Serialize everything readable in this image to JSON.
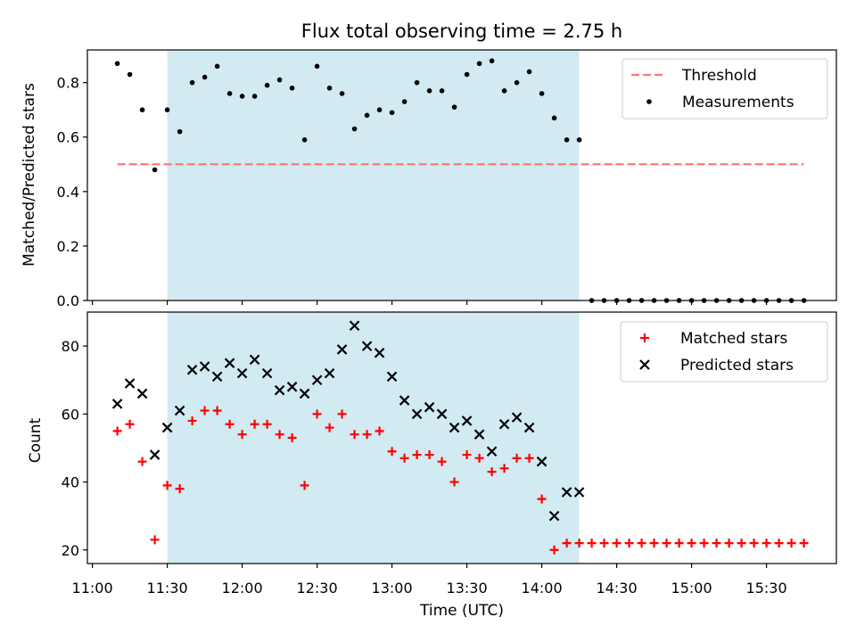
{
  "title": "Flux total observing time = 2.75 h",
  "xlabel": "Time (UTC)",
  "x_ticks": [
    "11:00",
    "11:30",
    "12:00",
    "12:30",
    "13:00",
    "13:30",
    "14:00",
    "14:30",
    "15:00",
    "15:30"
  ],
  "chart_data": [
    {
      "type": "scatter",
      "ylabel": "Matched/Predicted stars",
      "ylim": [
        0,
        0.92
      ],
      "y_ticks": [
        0.0,
        0.2,
        0.4,
        0.6,
        0.8
      ],
      "xlim": [
        "10:58",
        "15:58"
      ],
      "shaded_span": [
        "11:30",
        "14:15"
      ],
      "shade_color": "#add8e6",
      "legend_position": "upper right",
      "threshold": {
        "name": "Threshold",
        "y": 0.5,
        "x_range": [
          "11:10",
          "15:45"
        ],
        "color": "#ff7777",
        "style": "dashed"
      },
      "series": [
        {
          "name": "Measurements",
          "marker": "dot",
          "color": "#000000",
          "points": [
            [
              "11:10",
              0.87
            ],
            [
              "11:15",
              0.83
            ],
            [
              "11:20",
              0.7
            ],
            [
              "11:25",
              0.48
            ],
            [
              "11:30",
              0.7
            ],
            [
              "11:35",
              0.62
            ],
            [
              "11:40",
              0.8
            ],
            [
              "11:45",
              0.82
            ],
            [
              "11:50",
              0.86
            ],
            [
              "11:55",
              0.76
            ],
            [
              "12:00",
              0.75
            ],
            [
              "12:05",
              0.75
            ],
            [
              "12:10",
              0.79
            ],
            [
              "12:15",
              0.81
            ],
            [
              "12:20",
              0.78
            ],
            [
              "12:25",
              0.59
            ],
            [
              "12:30",
              0.86
            ],
            [
              "12:35",
              0.78
            ],
            [
              "12:40",
              0.76
            ],
            [
              "12:45",
              0.63
            ],
            [
              "12:50",
              0.68
            ],
            [
              "12:55",
              0.7
            ],
            [
              "13:00",
              0.69
            ],
            [
              "13:05",
              0.73
            ],
            [
              "13:10",
              0.8
            ],
            [
              "13:15",
              0.77
            ],
            [
              "13:20",
              0.77
            ],
            [
              "13:25",
              0.71
            ],
            [
              "13:30",
              0.83
            ],
            [
              "13:35",
              0.87
            ],
            [
              "13:40",
              0.88
            ],
            [
              "13:45",
              0.77
            ],
            [
              "13:50",
              0.8
            ],
            [
              "13:55",
              0.84
            ],
            [
              "14:00",
              0.76
            ],
            [
              "14:05",
              0.67
            ],
            [
              "14:10",
              0.59
            ],
            [
              "14:15",
              0.59
            ],
            [
              "14:20",
              0.0
            ],
            [
              "14:25",
              0.0
            ],
            [
              "14:30",
              0.0
            ],
            [
              "14:35",
              0.0
            ],
            [
              "14:40",
              0.0
            ],
            [
              "14:45",
              0.0
            ],
            [
              "14:50",
              0.0
            ],
            [
              "14:55",
              0.0
            ],
            [
              "15:00",
              0.0
            ],
            [
              "15:05",
              0.0
            ],
            [
              "15:10",
              0.0
            ],
            [
              "15:15",
              0.0
            ],
            [
              "15:20",
              0.0
            ],
            [
              "15:25",
              0.0
            ],
            [
              "15:30",
              0.0
            ],
            [
              "15:35",
              0.0
            ],
            [
              "15:40",
              0.0
            ],
            [
              "15:45",
              0.0
            ]
          ]
        }
      ]
    },
    {
      "type": "scatter",
      "ylabel": "Count",
      "ylim": [
        16,
        90
      ],
      "y_ticks": [
        20,
        40,
        60,
        80
      ],
      "xlim": [
        "10:58",
        "15:58"
      ],
      "shaded_span": [
        "11:30",
        "14:15"
      ],
      "shade_color": "#add8e6",
      "legend_position": "upper right",
      "series": [
        {
          "name": "Matched stars",
          "marker": "plus",
          "color": "#ff0000",
          "points": [
            [
              "11:10",
              55
            ],
            [
              "11:15",
              57
            ],
            [
              "11:20",
              46
            ],
            [
              "11:25",
              23
            ],
            [
              "11:30",
              39
            ],
            [
              "11:35",
              38
            ],
            [
              "11:40",
              58
            ],
            [
              "11:45",
              61
            ],
            [
              "11:50",
              61
            ],
            [
              "11:55",
              57
            ],
            [
              "12:00",
              54
            ],
            [
              "12:05",
              57
            ],
            [
              "12:10",
              57
            ],
            [
              "12:15",
              54
            ],
            [
              "12:20",
              53
            ],
            [
              "12:25",
              39
            ],
            [
              "12:30",
              60
            ],
            [
              "12:35",
              56
            ],
            [
              "12:40",
              60
            ],
            [
              "12:45",
              54
            ],
            [
              "12:50",
              54
            ],
            [
              "12:55",
              55
            ],
            [
              "13:00",
              49
            ],
            [
              "13:05",
              47
            ],
            [
              "13:10",
              48
            ],
            [
              "13:15",
              48
            ],
            [
              "13:20",
              46
            ],
            [
              "13:25",
              40
            ],
            [
              "13:30",
              48
            ],
            [
              "13:35",
              47
            ],
            [
              "13:40",
              43
            ],
            [
              "13:45",
              44
            ],
            [
              "13:50",
              47
            ],
            [
              "13:55",
              47
            ],
            [
              "14:00",
              35
            ],
            [
              "14:05",
              20
            ],
            [
              "14:10",
              22
            ],
            [
              "14:15",
              22
            ],
            [
              "14:20",
              22
            ],
            [
              "14:25",
              22
            ],
            [
              "14:30",
              22
            ],
            [
              "14:35",
              22
            ],
            [
              "14:40",
              22
            ],
            [
              "14:45",
              22
            ],
            [
              "14:50",
              22
            ],
            [
              "14:55",
              22
            ],
            [
              "15:00",
              22
            ],
            [
              "15:05",
              22
            ],
            [
              "15:10",
              22
            ],
            [
              "15:15",
              22
            ],
            [
              "15:20",
              22
            ],
            [
              "15:25",
              22
            ],
            [
              "15:30",
              22
            ],
            [
              "15:35",
              22
            ],
            [
              "15:40",
              22
            ],
            [
              "15:45",
              22
            ]
          ]
        },
        {
          "name": "Predicted stars",
          "marker": "cross",
          "color": "#000000",
          "points": [
            [
              "11:10",
              63
            ],
            [
              "11:15",
              69
            ],
            [
              "11:20",
              66
            ],
            [
              "11:25",
              48
            ],
            [
              "11:30",
              56
            ],
            [
              "11:35",
              61
            ],
            [
              "11:40",
              73
            ],
            [
              "11:45",
              74
            ],
            [
              "11:50",
              71
            ],
            [
              "11:55",
              75
            ],
            [
              "12:00",
              72
            ],
            [
              "12:05",
              76
            ],
            [
              "12:10",
              72
            ],
            [
              "12:15",
              67
            ],
            [
              "12:20",
              68
            ],
            [
              "12:25",
              66
            ],
            [
              "12:30",
              70
            ],
            [
              "12:35",
              72
            ],
            [
              "12:40",
              79
            ],
            [
              "12:45",
              86
            ],
            [
              "12:50",
              80
            ],
            [
              "12:55",
              78
            ],
            [
              "13:00",
              71
            ],
            [
              "13:05",
              64
            ],
            [
              "13:10",
              60
            ],
            [
              "13:15",
              62
            ],
            [
              "13:20",
              60
            ],
            [
              "13:25",
              56
            ],
            [
              "13:30",
              58
            ],
            [
              "13:35",
              54
            ],
            [
              "13:40",
              49
            ],
            [
              "13:45",
              57
            ],
            [
              "13:50",
              59
            ],
            [
              "13:55",
              56
            ],
            [
              "14:00",
              46
            ],
            [
              "14:05",
              30
            ],
            [
              "14:10",
              37
            ],
            [
              "14:15",
              37
            ]
          ]
        }
      ]
    }
  ]
}
